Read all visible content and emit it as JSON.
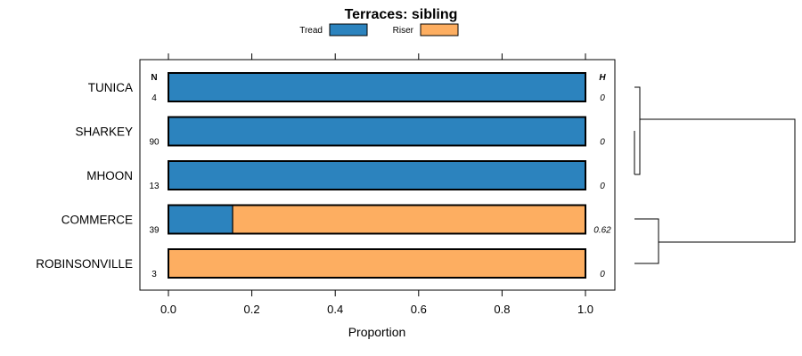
{
  "chart_data": {
    "type": "bar",
    "stacked": true,
    "orientation": "horizontal",
    "title": "Terraces: sibling",
    "xlabel": "Proportion",
    "ylabel": "",
    "xlim": [
      0,
      1
    ],
    "x_ticks": [
      "0.0",
      "0.2",
      "0.4",
      "0.6",
      "0.8",
      "1.0"
    ],
    "legend_position": "top",
    "categories": [
      "TUNICA",
      "SHARKEY",
      "MHOON",
      "COMMERCE",
      "ROBINSONVILLE"
    ],
    "series": [
      {
        "name": "Tread",
        "color": "#2c83be",
        "values": [
          1.0,
          1.0,
          1.0,
          0.154,
          0.0
        ]
      },
      {
        "name": "Riser",
        "color": "#fdae61",
        "values": [
          0.0,
          0.0,
          0.0,
          0.846,
          1.0
        ]
      }
    ],
    "n_header": "N",
    "n_values": [
      "4",
      "90",
      "13",
      "39",
      "3"
    ],
    "h_header": "H",
    "h_values": [
      "0",
      "0",
      "0",
      "0.62",
      "0"
    ],
    "dendrogram": true
  }
}
